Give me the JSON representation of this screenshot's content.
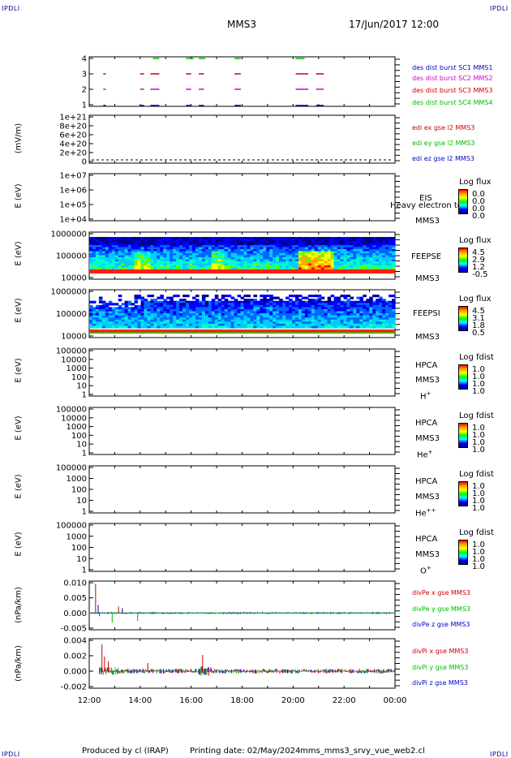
{
  "header": {
    "corner": "IPDLI",
    "title": "MMS3",
    "date": "17/Jun/2017 12:00"
  },
  "footer": {
    "produced": "Produced by cl (IRAP)",
    "printing": "Printing date: 02/May/2024",
    "file": "mms_mms3_srvy_vue_web2.cl"
  },
  "colors": {
    "red": "#cc0000",
    "green": "#00bb00",
    "blue": "#0000cc",
    "magenta": "#cc00cc"
  },
  "chart_data": [
    {
      "type": "line",
      "panel": "burst",
      "ytick_labels": [
        "4",
        "3",
        "2",
        "1"
      ],
      "series": [
        {
          "name": "des dist burst SC1 MMS1",
          "color": "blue",
          "level": 1,
          "segments": [
            [
              12.55,
              12.65
            ],
            [
              14.0,
              14.15
            ],
            [
              14.4,
              14.75
            ],
            [
              15.8,
              16.0
            ],
            [
              16.3,
              16.5
            ],
            [
              17.7,
              17.95
            ],
            [
              20.1,
              20.6
            ],
            [
              20.9,
              21.2
            ]
          ]
        },
        {
          "name": "des dist burst SC2 MMS2",
          "color": "magenta",
          "level": 2,
          "segments": [
            [
              12.55,
              12.65
            ],
            [
              14.0,
              14.15
            ],
            [
              14.4,
              14.75
            ],
            [
              15.8,
              16.0
            ],
            [
              16.3,
              16.5
            ],
            [
              17.7,
              17.95
            ],
            [
              20.1,
              20.6
            ],
            [
              20.9,
              21.2
            ]
          ]
        },
        {
          "name": "des dist burst SC3 MMS3",
          "color": "red",
          "level": 3,
          "segments": [
            [
              12.55,
              12.65
            ],
            [
              14.0,
              14.15
            ],
            [
              14.4,
              14.75
            ],
            [
              15.8,
              16.0
            ],
            [
              16.3,
              16.5
            ],
            [
              17.7,
              17.95
            ],
            [
              20.1,
              20.6
            ],
            [
              20.9,
              21.2
            ]
          ]
        },
        {
          "name": "des dist burst SC4 MMS4",
          "color": "green",
          "level": 4,
          "segments": [
            [
              14.5,
              14.75
            ],
            [
              15.8,
              16.1
            ],
            [
              16.3,
              16.55
            ],
            [
              17.7,
              17.95
            ],
            [
              20.1,
              20.45
            ]
          ]
        }
      ]
    },
    {
      "type": "line",
      "panel": "edi",
      "ylabel": "(mV/m)",
      "ytick_labels": [
        "1e+21",
        "8e+20",
        "6e+20",
        "4e+20",
        "2e+20",
        "0"
      ],
      "series": [
        {
          "name": "edi ex gse l2 MMS3",
          "color": "red"
        },
        {
          "name": "edi ey gse l2 MMS3",
          "color": "green"
        },
        {
          "name": "edi ez gse l2 MMS3",
          "color": "blue"
        }
      ]
    },
    {
      "type": "heatmap",
      "panel": "eis",
      "ylabel": "E (eV)",
      "ytick_labels": [
        "1e+07",
        "1e+06",
        "1e+05",
        "1e+04"
      ],
      "instrument": [
        "EIS",
        "MMS3"
      ],
      "overlay_text": "Heavy electron tof",
      "colorbar": {
        "title": "Log flux",
        "values": [
          "0.0",
          "0.0",
          "0.0",
          "0.0"
        ]
      }
    },
    {
      "type": "heatmap",
      "panel": "feepse",
      "ylabel": "E (eV)",
      "ytick_labels": [
        "1000000",
        "100000",
        "10000"
      ],
      "instrument": [
        "FEEPSE",
        "MMS3"
      ],
      "colorbar": {
        "title": "Log flux",
        "values": [
          "4.5",
          "2.9",
          "1.2",
          "-0.5"
        ]
      }
    },
    {
      "type": "heatmap",
      "panel": "feepsi",
      "ylabel": "E (eV)",
      "ytick_labels": [
        "1000000",
        "100000",
        "10000"
      ],
      "instrument": [
        "FEEPSI",
        "MMS3"
      ],
      "colorbar": {
        "title": "Log flux",
        "values": [
          "4.5",
          "3.1",
          "1.8",
          "0.5"
        ]
      }
    },
    {
      "type": "heatmap",
      "panel": "hpca_h",
      "ylabel": "E (eV)",
      "ytick_labels": [
        "100000",
        "10000",
        "1000",
        "100",
        "10",
        "1"
      ],
      "instrument": [
        "HPCA",
        "MMS3"
      ],
      "species": "H",
      "species_sup": "+",
      "colorbar": {
        "title": "Log fdist",
        "values": [
          "1.0",
          "1.0",
          "1.0",
          "1.0"
        ]
      }
    },
    {
      "type": "heatmap",
      "panel": "hpca_he",
      "ylabel": "E (eV)",
      "ytick_labels": [
        "100000",
        "10000",
        "1000",
        "100",
        "10",
        "1"
      ],
      "instrument": [
        "HPCA",
        "MMS3"
      ],
      "species": "He",
      "species_sup": "+",
      "colorbar": {
        "title": "Log fdist",
        "values": [
          "1.0",
          "1.0",
          "1.0",
          "1.0"
        ]
      }
    },
    {
      "type": "heatmap",
      "panel": "hpca_he2",
      "ylabel": "E (eV)",
      "ytick_labels": [
        "100000",
        "1000",
        "100",
        "10",
        "1"
      ],
      "instrument": [
        "HPCA",
        "MMS3"
      ],
      "species": "He",
      "species_sup": "++",
      "colorbar": {
        "title": "Log fdist",
        "values": [
          "1.0",
          "1.0",
          "1.0",
          "1.0"
        ]
      }
    },
    {
      "type": "heatmap",
      "panel": "hpca_o",
      "ylabel": "E (eV)",
      "ytick_labels": [
        "100000",
        "1000",
        "100",
        "10",
        "1"
      ],
      "instrument": [
        "HPCA",
        "MMS3"
      ],
      "species": "O",
      "species_sup": "+",
      "colorbar": {
        "title": "Log fdist",
        "values": [
          "1.0",
          "1.0",
          "1.0",
          "1.0"
        ]
      }
    },
    {
      "type": "line",
      "panel": "divpe",
      "ylabel": "(nPa/km)",
      "ytick_labels": [
        "0.010",
        "0.005",
        "0.000",
        "-0.005"
      ],
      "series": [
        {
          "name": "divPe x gse MMS3",
          "color": "red"
        },
        {
          "name": "divPe y gse MMS3",
          "color": "green"
        },
        {
          "name": "divPe z gse MMS3",
          "color": "blue"
        }
      ]
    },
    {
      "type": "line",
      "panel": "divpi",
      "ylabel": "(nPa/km)",
      "ytick_labels": [
        "0.004",
        "0.002",
        "0.000",
        "-0.002"
      ],
      "xtick_labels": [
        "12:00",
        "14:00",
        "16:00",
        "18:00",
        "20:00",
        "22:00",
        "00:00"
      ],
      "series": [
        {
          "name": "divPi x gse MMS3",
          "color": "red"
        },
        {
          "name": "divPi y gse MMS3",
          "color": "green"
        },
        {
          "name": "divPi z gse MMS3",
          "color": "blue"
        }
      ]
    }
  ]
}
